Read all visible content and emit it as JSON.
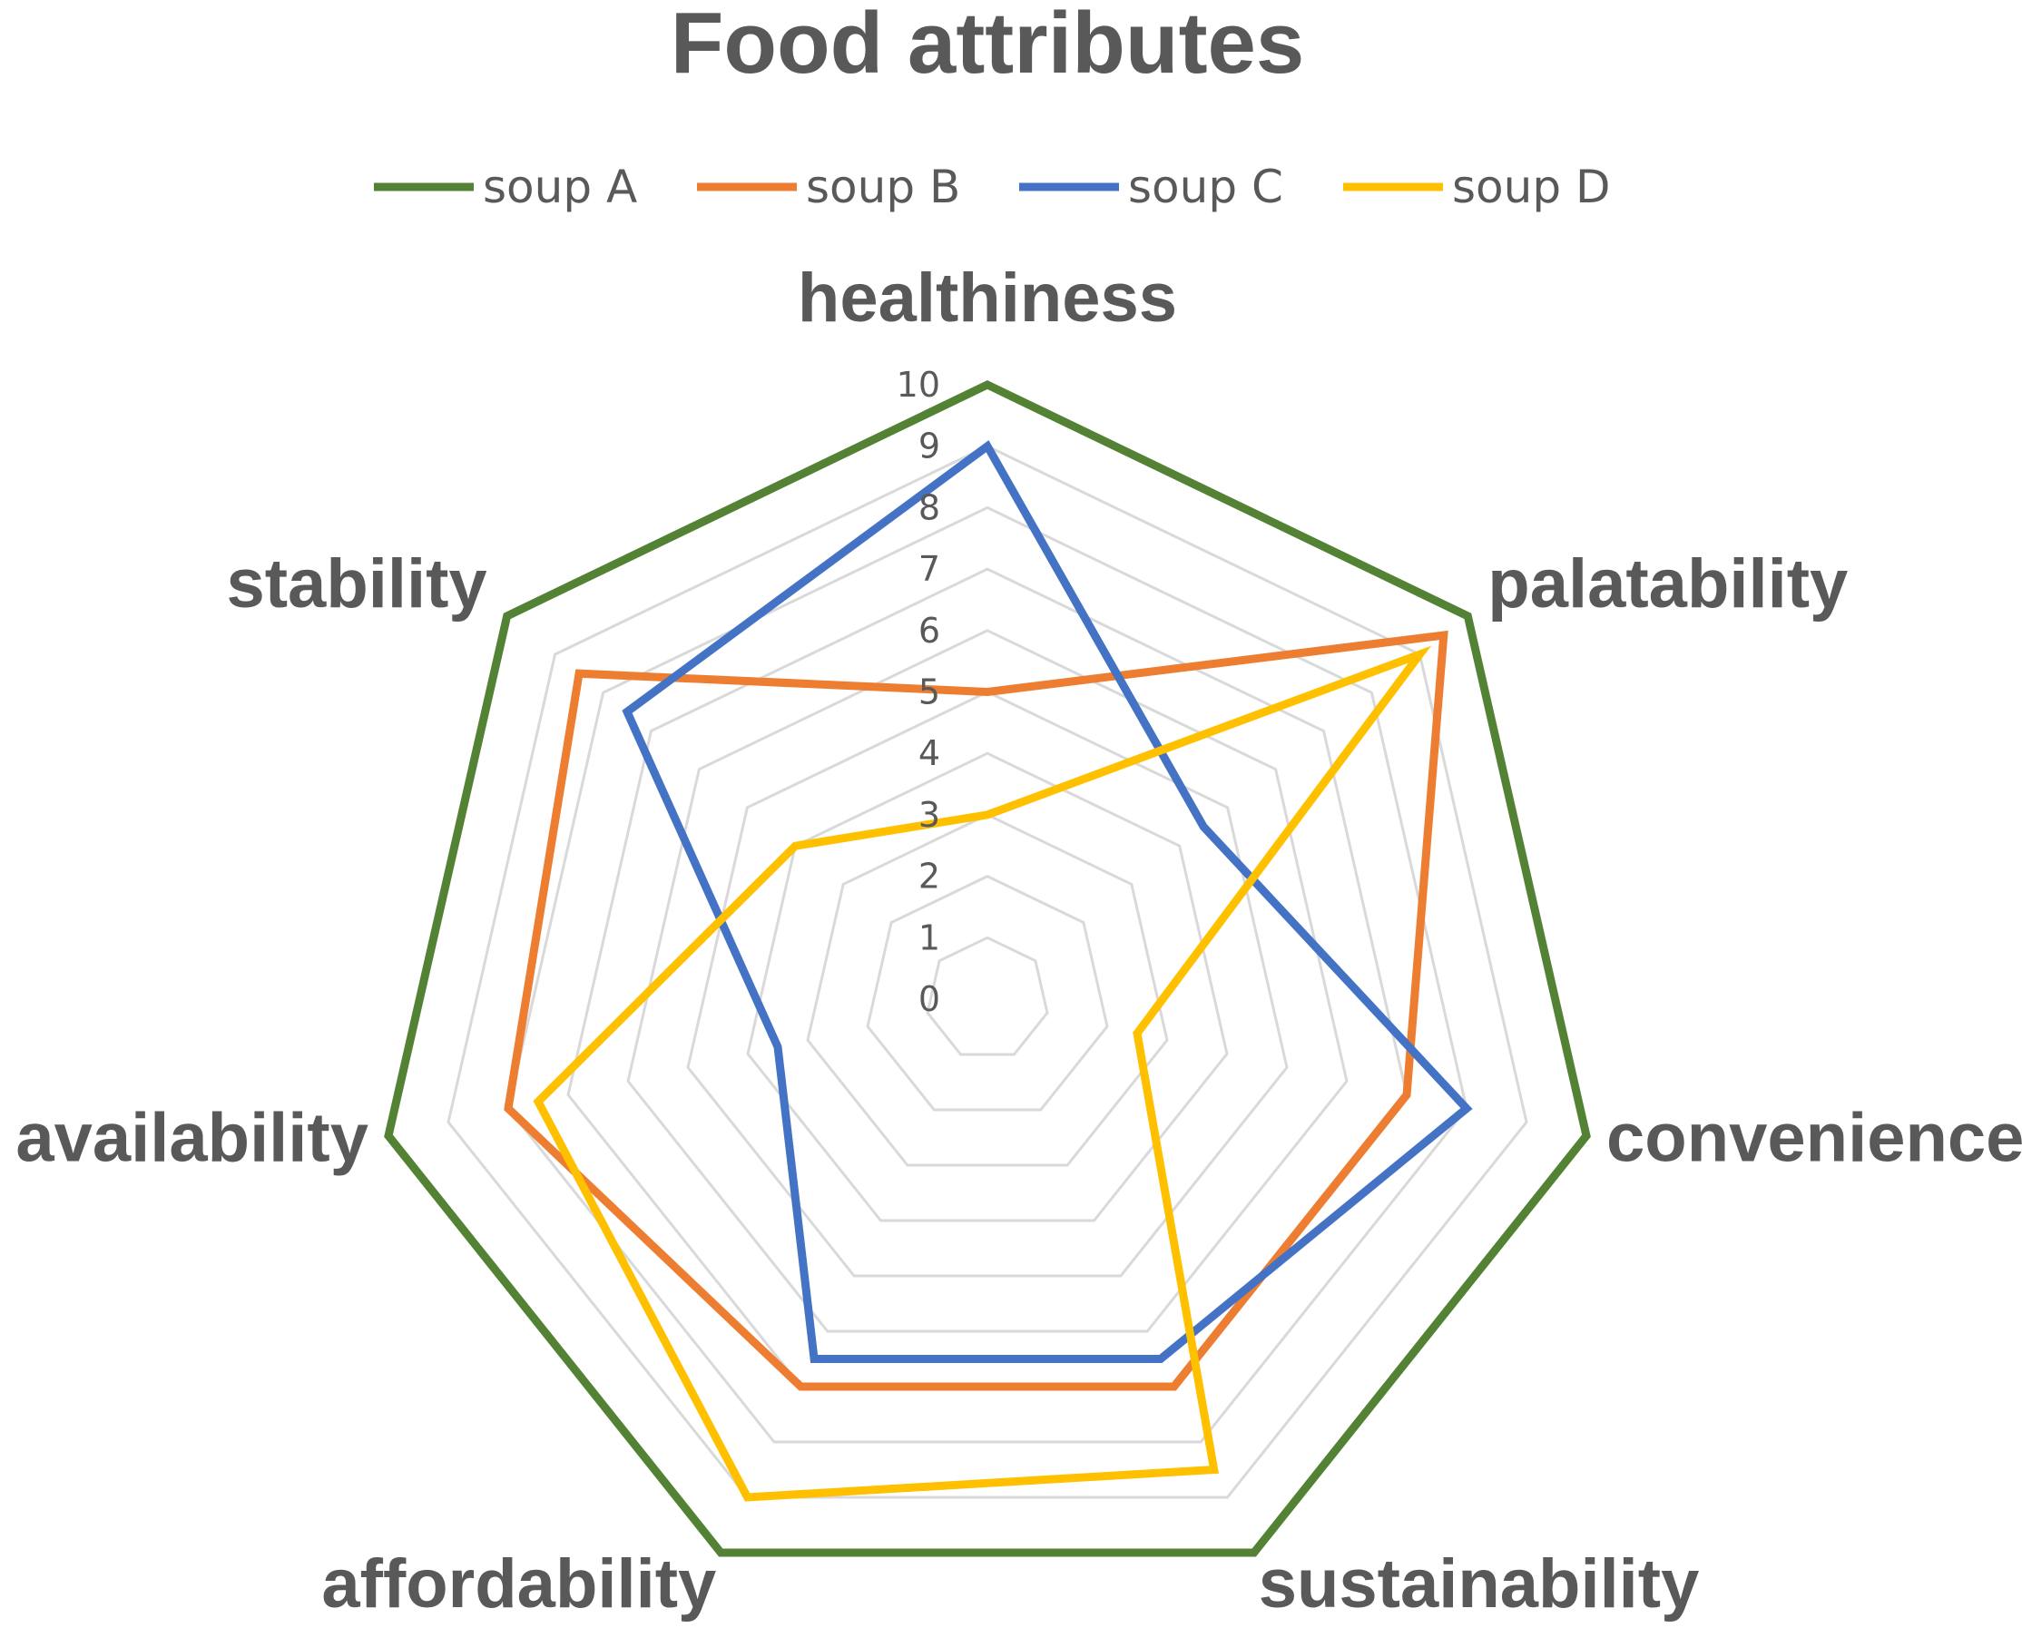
{
  "chart_data": {
    "type": "radar",
    "title": "Food attributes",
    "axes": [
      "healthiness",
      "palatability",
      "convenience",
      "sustainability",
      "affordability",
      "availability",
      "stability"
    ],
    "ticks": [
      "0",
      "1",
      "2",
      "3",
      "4",
      "5",
      "6",
      "7",
      "8",
      "9",
      "10"
    ],
    "rlim": [
      0,
      10
    ],
    "grid": true,
    "legend_position": "top",
    "series": [
      {
        "name": "soup A",
        "color": "#548235",
        "values": [
          10,
          10,
          10,
          10,
          10,
          10,
          10
        ]
      },
      {
        "name": "soup B",
        "color": "#ED7D31",
        "values": [
          5,
          9.5,
          7,
          7,
          7,
          8,
          8.5
        ]
      },
      {
        "name": "soup C",
        "color": "#4472C4",
        "values": [
          9,
          4.5,
          8,
          6.5,
          6.5,
          3.5,
          7.5
        ]
      },
      {
        "name": "soup D",
        "color": "#FFC000",
        "values": [
          3,
          9,
          2.5,
          8.5,
          9,
          7.5,
          4
        ]
      }
    ]
  }
}
